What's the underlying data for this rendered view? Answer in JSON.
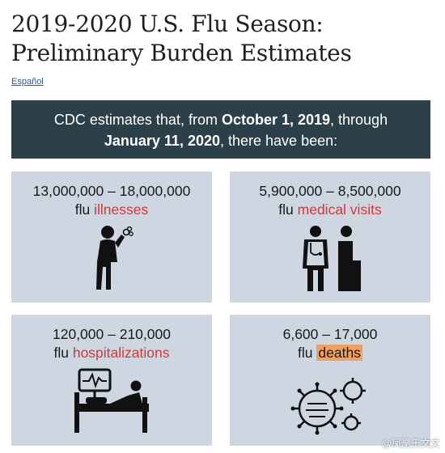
{
  "title_line1": "2019-2020 U.S. Flu Season:",
  "title_line2": "Preliminary Burden Estimates",
  "language_link": "Español",
  "banner": {
    "pre": "CDC estimates that, from ",
    "date_start": "October 1, 2019",
    "mid": ", through",
    "date_end": "January 11, 2020",
    "post": ", there have been:"
  },
  "cards": [
    {
      "range": "13,000,000 – 18,000,000",
      "prefix": "flu ",
      "label": "illnesses",
      "icon": "sick-person-icon"
    },
    {
      "range": "5,900,000 – 8,500,000",
      "prefix": "flu ",
      "label": "medical visits",
      "icon": "doctor-patient-icon"
    },
    {
      "range": "120,000 – 210,000",
      "prefix": "flu ",
      "label": "hospitalizations",
      "icon": "hospital-bed-icon"
    },
    {
      "range": "6,600 – 17,000",
      "prefix": "flu ",
      "label": "deaths",
      "icon": "virus-icon"
    }
  ],
  "watermark": "@凤凰王文文",
  "colors": {
    "banner_bg": "#2b4049",
    "card_bg": "#cdd6e1",
    "highlight_red": "#d13a3a",
    "deaths_highlight": "#f0a060"
  }
}
